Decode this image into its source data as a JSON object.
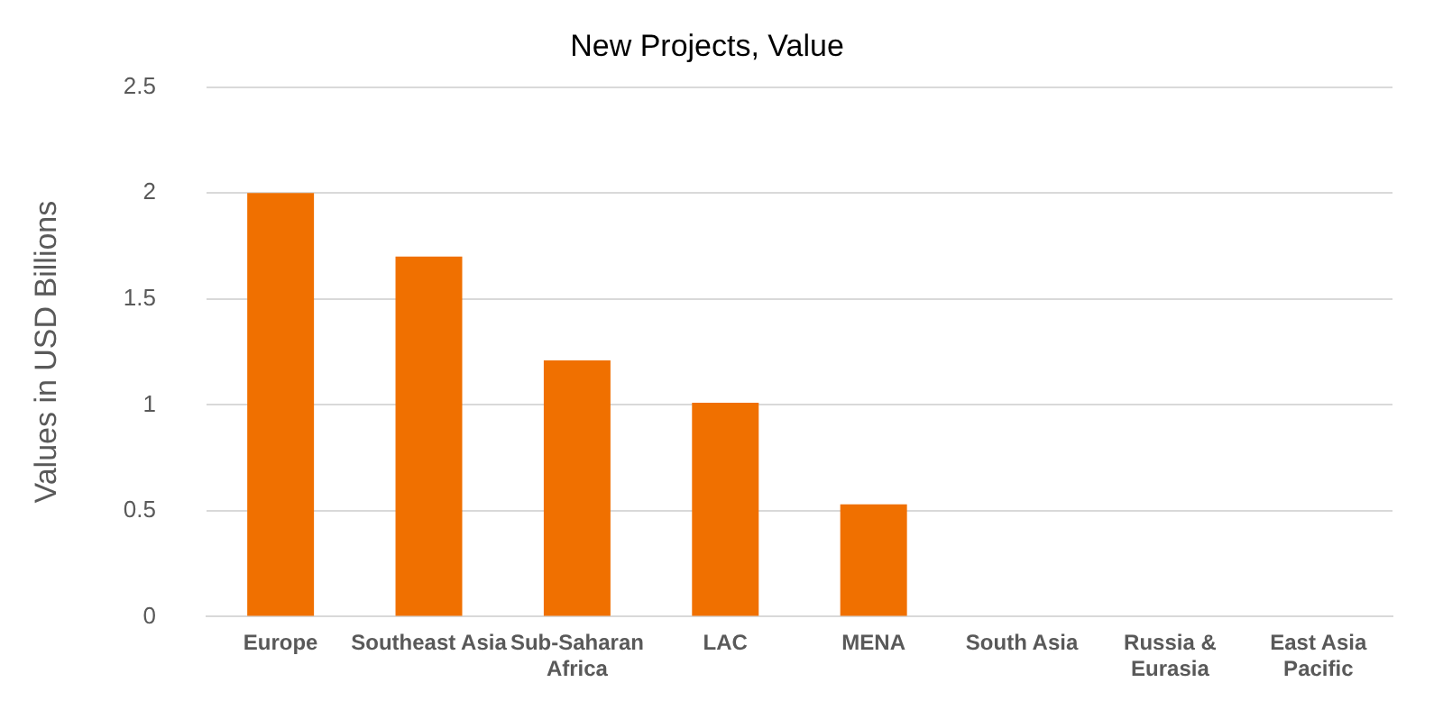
{
  "chart_data": {
    "type": "bar",
    "title": "New Projects, Value",
    "ylabel": "Values in USD Billions",
    "categories": [
      "Europe",
      "Southeast Asia",
      "Sub-Saharan Africa",
      "LAC",
      "MENA",
      "South Asia",
      "Russia & Eurasia",
      "East Asia Pacific"
    ],
    "values": [
      2.0,
      1.7,
      1.21,
      1.01,
      0.53,
      0,
      0,
      0
    ],
    "color": "#f07000",
    "ylim": [
      0,
      2.5
    ],
    "yticks": [
      0,
      0.5,
      1,
      1.5,
      2,
      2.5
    ],
    "grid": "y"
  }
}
